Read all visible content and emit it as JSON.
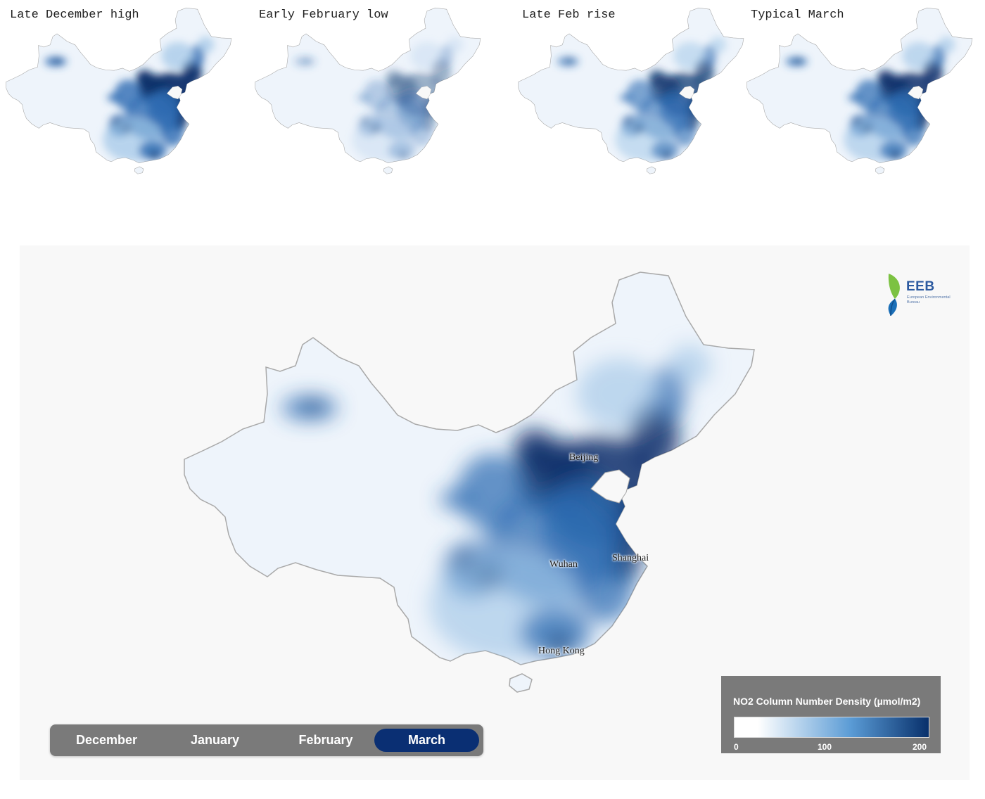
{
  "thumbnails": [
    {
      "title": "Late December high",
      "level": 0.95
    },
    {
      "title": "Early February low",
      "level": 0.35
    },
    {
      "title": "Late Feb rise",
      "level": 0.7
    },
    {
      "title": "Typical March",
      "level": 0.85
    }
  ],
  "main_map": {
    "cities": {
      "beijing": "Beijing",
      "wuhan": "Wuhan",
      "shanghai": "Shanghai",
      "hong_kong": "Hong Kong"
    }
  },
  "logo": {
    "name": "EEB",
    "subtitle": "European Environmental Bureau"
  },
  "month_selector": {
    "months": [
      "December",
      "January",
      "February",
      "March"
    ],
    "selected": "March"
  },
  "legend": {
    "title": "NO2 Column Number Density (µmol/m2)",
    "ticks": [
      "0",
      "100",
      "200"
    ],
    "color_low": "#ffffff",
    "color_mid": "#5a9bd5",
    "color_high": "#08306b"
  },
  "colors": {
    "map_land": "#eef4fb",
    "map_border": "#a9a9a9",
    "no2_dark": "#08306b",
    "no2_mid": "#2f6db3",
    "no2_light": "#9cc3e6",
    "selector_bg": "#7a7a7a",
    "selector_active": "#0a2f73"
  }
}
